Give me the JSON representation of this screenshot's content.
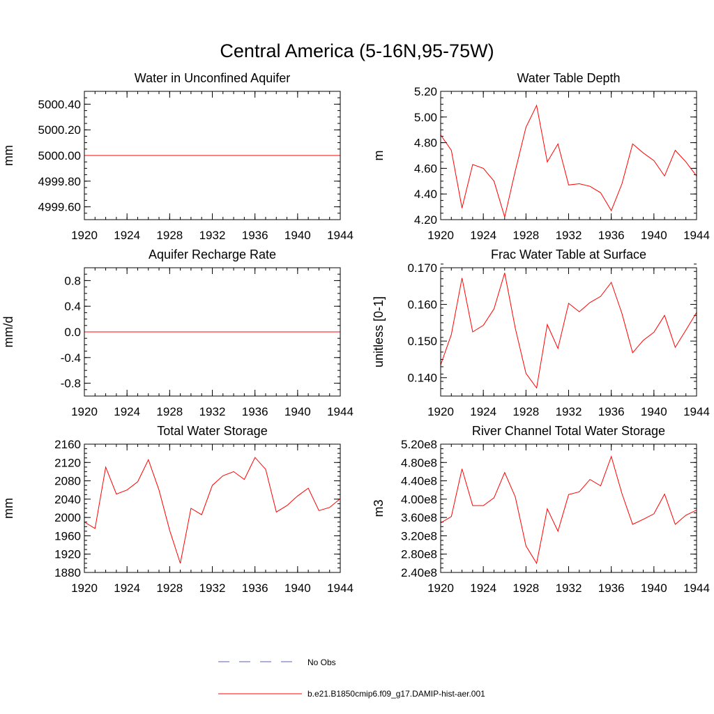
{
  "figure": {
    "title": "Central America (5-16N,95-75W)",
    "legend": [
      {
        "label": "No Obs",
        "color": "#5a5fb0",
        "style": "dashed"
      },
      {
        "label": "b.e21.B1850cmip6.f09_g17.DAMIP-hist-aer.001",
        "color": "#ff0000",
        "style": "solid"
      }
    ]
  },
  "chart_data": [
    {
      "type": "line",
      "title": "Water in Unconfined Aquifer",
      "ylabel": "mm",
      "xlim": [
        1920,
        1944
      ],
      "ylim": [
        4999.5,
        5000.5
      ],
      "x_ticks": [
        "1920",
        "1924",
        "1928",
        "1932",
        "1936",
        "1940",
        "1944"
      ],
      "y_ticks": [
        {
          "v": 4999.6,
          "t": "4999.60"
        },
        {
          "v": 4999.8,
          "t": "4999.80"
        },
        {
          "v": 5000.0,
          "t": "5000.00"
        },
        {
          "v": 5000.2,
          "t": "5000.20"
        },
        {
          "v": 5000.4,
          "t": "5000.40"
        }
      ],
      "y_minor_step": 0.05,
      "x": [
        1920,
        1921,
        1922,
        1923,
        1924,
        1925,
        1926,
        1927,
        1928,
        1929,
        1930,
        1931,
        1932,
        1933,
        1934,
        1935,
        1936,
        1937,
        1938,
        1939,
        1940,
        1941,
        1942,
        1943,
        1944
      ],
      "series": [
        {
          "values": [
            5000,
            5000,
            5000,
            5000,
            5000,
            5000,
            5000,
            5000,
            5000,
            5000,
            5000,
            5000,
            5000,
            5000,
            5000,
            5000,
            5000,
            5000,
            5000,
            5000,
            5000,
            5000,
            5000,
            5000,
            5000
          ],
          "color": "#ff0000"
        }
      ]
    },
    {
      "type": "line",
      "title": "Water Table Depth",
      "ylabel": "m",
      "xlim": [
        1920,
        1944
      ],
      "ylim": [
        4.2,
        5.2
      ],
      "x_ticks": [
        "1920",
        "1924",
        "1928",
        "1932",
        "1936",
        "1940",
        "1944"
      ],
      "y_ticks": [
        {
          "v": 4.2,
          "t": "4.20"
        },
        {
          "v": 4.4,
          "t": "4.40"
        },
        {
          "v": 4.6,
          "t": "4.60"
        },
        {
          "v": 4.8,
          "t": "4.80"
        },
        {
          "v": 5.0,
          "t": "5.00"
        },
        {
          "v": 5.2,
          "t": "5.20"
        }
      ],
      "y_minor_step": 0.05,
      "x": [
        1920,
        1921,
        1922,
        1923,
        1924,
        1925,
        1926,
        1927,
        1928,
        1929,
        1930,
        1931,
        1932,
        1933,
        1934,
        1935,
        1936,
        1937,
        1938,
        1939,
        1940,
        1941,
        1942,
        1943,
        1944
      ],
      "series": [
        {
          "values": [
            4.86,
            4.74,
            4.29,
            4.63,
            4.6,
            4.5,
            4.22,
            4.58,
            4.92,
            5.09,
            4.65,
            4.79,
            4.47,
            4.48,
            4.46,
            4.41,
            4.27,
            4.48,
            4.79,
            4.72,
            4.66,
            4.54,
            4.74,
            4.65,
            4.54
          ],
          "color": "#ff0000"
        }
      ]
    },
    {
      "type": "line",
      "title": "Aquifer Recharge Rate",
      "ylabel": "mm/d",
      "xlim": [
        1920,
        1944
      ],
      "ylim": [
        -1.0,
        1.0
      ],
      "x_ticks": [
        "1920",
        "1924",
        "1928",
        "1932",
        "1936",
        "1940",
        "1944"
      ],
      "y_ticks": [
        {
          "v": -0.8,
          "t": "-0.8"
        },
        {
          "v": -0.4,
          "t": "-0.4"
        },
        {
          "v": 0.0,
          "t": "0.0"
        },
        {
          "v": 0.4,
          "t": "0.4"
        },
        {
          "v": 0.8,
          "t": "0.8"
        }
      ],
      "y_minor_step": 0.1,
      "x": [
        1920,
        1921,
        1922,
        1923,
        1924,
        1925,
        1926,
        1927,
        1928,
        1929,
        1930,
        1931,
        1932,
        1933,
        1934,
        1935,
        1936,
        1937,
        1938,
        1939,
        1940,
        1941,
        1942,
        1943,
        1944
      ],
      "series": [
        {
          "values": [
            0,
            0,
            0,
            0,
            0,
            0,
            0,
            0,
            0,
            0,
            0,
            0,
            0,
            0,
            0,
            0,
            0,
            0,
            0,
            0,
            0,
            0,
            0,
            0,
            0
          ],
          "color": "#ff0000"
        }
      ]
    },
    {
      "type": "line",
      "title": "Frac Water Table at Surface",
      "ylabel": "unitless [0-1]",
      "xlim": [
        1920,
        1944
      ],
      "ylim": [
        0.135,
        0.17
      ],
      "x_ticks": [
        "1920",
        "1924",
        "1928",
        "1932",
        "1936",
        "1940",
        "1944"
      ],
      "y_ticks": [
        {
          "v": 0.14,
          "t": "0.140"
        },
        {
          "v": 0.15,
          "t": "0.150"
        },
        {
          "v": 0.16,
          "t": "0.160"
        },
        {
          "v": 0.17,
          "t": "0.170"
        }
      ],
      "y_minor_step": 0.002,
      "x": [
        1920,
        1921,
        1922,
        1923,
        1924,
        1925,
        1926,
        1927,
        1928,
        1929,
        1930,
        1931,
        1932,
        1933,
        1934,
        1935,
        1936,
        1937,
        1938,
        1939,
        1940,
        1941,
        1942,
        1943,
        1944
      ],
      "series": [
        {
          "values": [
            0.1435,
            0.1518,
            0.1672,
            0.1525,
            0.1543,
            0.1588,
            0.1686,
            0.1535,
            0.1412,
            0.1372,
            0.1545,
            0.148,
            0.1603,
            0.158,
            0.1605,
            0.1622,
            0.166,
            0.1575,
            0.1468,
            0.1502,
            0.1524,
            0.157,
            0.1483,
            0.153,
            0.1578
          ],
          "color": "#ff0000"
        }
      ]
    },
    {
      "type": "line",
      "title": "Total Water Storage",
      "ylabel": "mm",
      "xlim": [
        1920,
        1944
      ],
      "ylim": [
        1880,
        2160
      ],
      "x_ticks": [
        "1920",
        "1924",
        "1928",
        "1932",
        "1936",
        "1940",
        "1944"
      ],
      "y_ticks": [
        {
          "v": 1880,
          "t": "1880"
        },
        {
          "v": 1920,
          "t": "1920"
        },
        {
          "v": 1960,
          "t": "1960"
        },
        {
          "v": 2000,
          "t": "2000"
        },
        {
          "v": 2040,
          "t": "2040"
        },
        {
          "v": 2080,
          "t": "2080"
        },
        {
          "v": 2120,
          "t": "2120"
        },
        {
          "v": 2160,
          "t": "2160"
        }
      ],
      "y_minor_step": 10,
      "x": [
        1920,
        1921,
        1922,
        1923,
        1924,
        1925,
        1926,
        1927,
        1928,
        1929,
        1930,
        1931,
        1932,
        1933,
        1934,
        1935,
        1936,
        1937,
        1938,
        1939,
        1940,
        1941,
        1942,
        1943,
        1944
      ],
      "series": [
        {
          "values": [
            1990,
            1976,
            2110,
            2051,
            2060,
            2078,
            2126,
            2060,
            1972,
            1900,
            2020,
            2006,
            2070,
            2091,
            2100,
            2083,
            2131,
            2105,
            2012,
            2026,
            2047,
            2064,
            2015,
            2022,
            2041
          ],
          "color": "#ff0000"
        }
      ]
    },
    {
      "type": "line",
      "title": "River Channel Total Water Storage",
      "ylabel": "m3",
      "xlim": [
        1920,
        1944
      ],
      "ylim": [
        240000000.0,
        520000000.0
      ],
      "x_ticks": [
        "1920",
        "1924",
        "1928",
        "1932",
        "1936",
        "1940",
        "1944"
      ],
      "y_ticks": [
        {
          "v": 240000000.0,
          "t": "2.40e8"
        },
        {
          "v": 280000000.0,
          "t": "2.80e8"
        },
        {
          "v": 320000000.0,
          "t": "3.20e8"
        },
        {
          "v": 360000000.0,
          "t": "3.60e8"
        },
        {
          "v": 400000000.0,
          "t": "4.00e8"
        },
        {
          "v": 440000000.0,
          "t": "4.40e8"
        },
        {
          "v": 480000000.0,
          "t": "4.80e8"
        },
        {
          "v": 520000000.0,
          "t": "5.20e8"
        }
      ],
      "y_minor_step": 10000000.0,
      "x": [
        1920,
        1921,
        1922,
        1923,
        1924,
        1925,
        1926,
        1927,
        1928,
        1929,
        1930,
        1931,
        1932,
        1933,
        1934,
        1935,
        1936,
        1937,
        1938,
        1939,
        1940,
        1941,
        1942,
        1943,
        1944
      ],
      "series": [
        {
          "values": [
            348000000.0,
            362000000.0,
            466000000.0,
            386000000.0,
            386000000.0,
            403000000.0,
            458000000.0,
            405000000.0,
            298000000.0,
            260000000.0,
            379000000.0,
            330000000.0,
            410000000.0,
            416000000.0,
            443000000.0,
            429000000.0,
            493000000.0,
            412000000.0,
            345000000.0,
            356000000.0,
            368000000.0,
            411000000.0,
            345000000.0,
            365000000.0,
            376000000.0
          ],
          "color": "#ff0000"
        }
      ]
    }
  ]
}
